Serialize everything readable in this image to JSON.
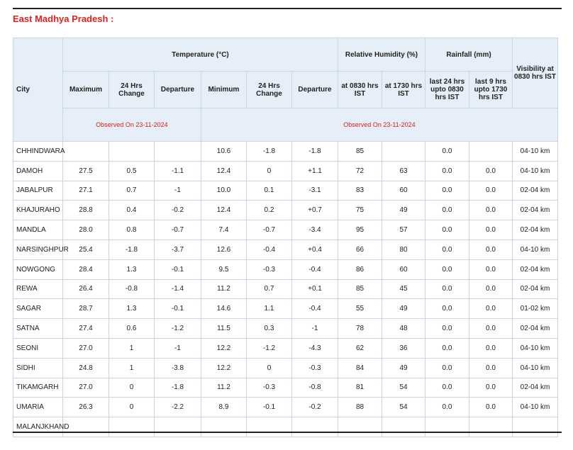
{
  "header": {
    "title": "East Madhya Pradesh :"
  },
  "table": {
    "headers": {
      "city": "City",
      "temperature": "Temperature (°C)",
      "humidity": "Relative Humidity (%)",
      "rainfall": "Rainfall (mm)",
      "visibility": "Visibility at 0830 hrs IST",
      "sub": [
        "Maximum",
        "24 Hrs Change",
        "Departure",
        "Minimum",
        "24 Hrs Change",
        "Departure",
        "at 0830 hrs IST",
        "at 1730 hrs IST",
        "last 24 hrs upto 0830 hrs IST",
        "last 9 hrs upto 1730 hrs IST"
      ],
      "observed": [
        "Observed On 23-11-2024",
        "Observed On 23-11-2024"
      ]
    },
    "rows": [
      [
        "CHHINDWARA",
        null,
        null,
        null,
        "10.6",
        "-1.8",
        "-1.8",
        "85",
        null,
        "0.0",
        null,
        "04-10 km"
      ],
      [
        "DAMOH",
        "27.5",
        "0.5",
        "-1.1",
        "12.4",
        "0",
        "+1.1",
        "72",
        "63",
        "0.0",
        "0.0",
        "04-10 km"
      ],
      [
        "JABALPUR",
        "27.1",
        "0.7",
        "-1",
        "10.0",
        "0.1",
        "-3.1",
        "83",
        "60",
        "0.0",
        "0.0",
        "02-04 km"
      ],
      [
        "KHAJURAHO",
        "28.8",
        "0.4",
        "-0.2",
        "12.4",
        "0.2",
        "+0.7",
        "75",
        "49",
        "0.0",
        "0.0",
        "02-04 km"
      ],
      [
        "MANDLA",
        "28.0",
        "0.8",
        "-0.7",
        "7.4",
        "-0.7",
        "-3.4",
        "95",
        "57",
        "0.0",
        "0.0",
        "02-04 km"
      ],
      [
        "NARSINGHPUR",
        "25.4",
        "-1.8",
        "-3.7",
        "12.6",
        "-0.4",
        "+0.4",
        "66",
        "80",
        "0.0",
        "0.0",
        "04-10 km"
      ],
      [
        "NOWGONG",
        "28.4",
        "1.3",
        "-0.1",
        "9.5",
        "-0.3",
        "-0.4",
        "86",
        "60",
        "0.0",
        "0.0",
        "02-04 km"
      ],
      [
        "REWA",
        "26.4",
        "-0.8",
        "-1.4",
        "11.2",
        "0.7",
        "+0.1",
        "85",
        "45",
        "0.0",
        "0.0",
        "02-04 km"
      ],
      [
        "SAGAR",
        "28.7",
        "1.3",
        "-0.1",
        "14.6",
        "1.1",
        "-0.4",
        "55",
        "49",
        "0.0",
        "0.0",
        "01-02 km"
      ],
      [
        "SATNA",
        "27.4",
        "0.6",
        "-1.2",
        "11.5",
        "0.3",
        "-1",
        "78",
        "48",
        "0.0",
        "0.0",
        "02-04 km"
      ],
      [
        "SEONI",
        "27.0",
        "1",
        "-1",
        "12.2",
        "-1.2",
        "-4.3",
        "62",
        "36",
        "0.0",
        "0.0",
        "04-10 km"
      ],
      [
        "SIDHI",
        "24.8",
        "1",
        "-3.8",
        "12.2",
        "0",
        "-0.3",
        "84",
        "49",
        "0.0",
        "0.0",
        "04-10 km"
      ],
      [
        "TIKAMGARH",
        "27.0",
        "0",
        "-1.8",
        "11.2",
        "-0.3",
        "-0.8",
        "81",
        "54",
        "0.0",
        "0.0",
        "02-04 km"
      ],
      [
        "UMARIA",
        "26.3",
        "0",
        "-2.2",
        "8.9",
        "-0.1",
        "-0.2",
        "88",
        "54",
        "0.0",
        "0.0",
        "04-10 km"
      ],
      [
        "MALANJKHAND",
        null,
        null,
        null,
        null,
        null,
        null,
        null,
        null,
        null,
        null,
        null
      ]
    ]
  }
}
